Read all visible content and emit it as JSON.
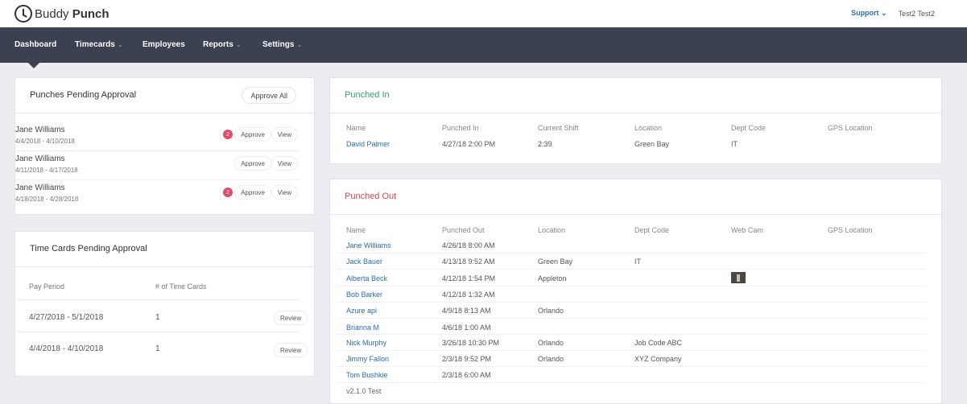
{
  "app": {
    "logo_word1": "Buddy",
    "logo_word2": "Punch",
    "support_label": "Support",
    "user_name": "Test2 Test2"
  },
  "nav": {
    "items": [
      {
        "label": "Dashboard",
        "has_menu": false,
        "active": true
      },
      {
        "label": "Timecards",
        "has_menu": true
      },
      {
        "label": "Employees",
        "has_menu": false
      },
      {
        "label": "Reports",
        "has_menu": true
      },
      {
        "label": "Settings",
        "has_menu": true
      }
    ]
  },
  "punches_pending": {
    "title": "Punches Pending Approval",
    "approve_all_label": "Approve All",
    "approve_label": "Approve",
    "view_label": "View",
    "rows": [
      {
        "name": "Jane Williams",
        "date_range": "4/4/2018 - 4/10/2018",
        "badge": "2"
      },
      {
        "name": "Jane Williams",
        "date_range": "4/11/2018 - 4/17/2018",
        "badge": ""
      },
      {
        "name": "Jane Williams",
        "date_range": "4/18/2018 - 4/28/2018",
        "badge": "2"
      }
    ]
  },
  "timecards_pending": {
    "title": "Time Cards Pending Approval",
    "col_period": "Pay Period",
    "col_count": "# of Time Cards",
    "review_label": "Review",
    "rows": [
      {
        "period": "4/27/2018 - 5/1/2018",
        "count": "1"
      },
      {
        "period": "4/4/2018 - 4/10/2018",
        "count": "1"
      }
    ]
  },
  "punched_in": {
    "title": "Punched In",
    "columns": [
      "Name",
      "Punched In",
      "Current Shift",
      "Location",
      "Dept Code",
      "GPS Location"
    ],
    "rows": [
      {
        "name": "David Palmer",
        "punched_in": "4/27/18 2:00 PM",
        "shift": "2:39",
        "location": "Green Bay",
        "dept": "IT",
        "gps": ""
      }
    ]
  },
  "punched_out": {
    "title": "Punched Out",
    "columns": [
      "Name",
      "Punched Out",
      "Location",
      "Dept Code",
      "Web Cam",
      "GPS Location"
    ],
    "rows": [
      {
        "name": "Jane Williams",
        "punched_out": "4/26/18 8:00 AM",
        "location": "",
        "dept": "",
        "webcam": false
      },
      {
        "name": "Jack Bauer",
        "punched_out": "4/13/18 9:52 AM",
        "location": "Green Bay",
        "dept": "IT",
        "webcam": false
      },
      {
        "name": "Alberta Beck",
        "punched_out": "4/12/18 1:54 PM",
        "location": "Appleton",
        "dept": "",
        "webcam": true
      },
      {
        "name": "Bob Barker",
        "punched_out": "4/12/18 1:32 AM",
        "location": "",
        "dept": "",
        "webcam": false
      },
      {
        "name": "Azure api",
        "punched_out": "4/9/18 8:13 AM",
        "location": "Orlando",
        "dept": "",
        "webcam": false
      },
      {
        "name": "Brianna M",
        "punched_out": "4/6/18 1:00 AM",
        "location": "",
        "dept": "",
        "webcam": false
      },
      {
        "name": "Nick Murphy",
        "punched_out": "3/26/18 10:30 PM",
        "location": "Orlando",
        "dept": "Job Code ABC",
        "webcam": false
      },
      {
        "name": "Jimmy Fallon",
        "punched_out": "2/3/18 9:52 PM",
        "location": "Orlando",
        "dept": "XYZ Company",
        "webcam": false
      },
      {
        "name": "Tom Bushkie",
        "punched_out": "2/3/18 6:00 AM",
        "location": "",
        "dept": "",
        "webcam": false
      }
    ]
  },
  "footer": {
    "version": "v2.1.0 Test"
  }
}
